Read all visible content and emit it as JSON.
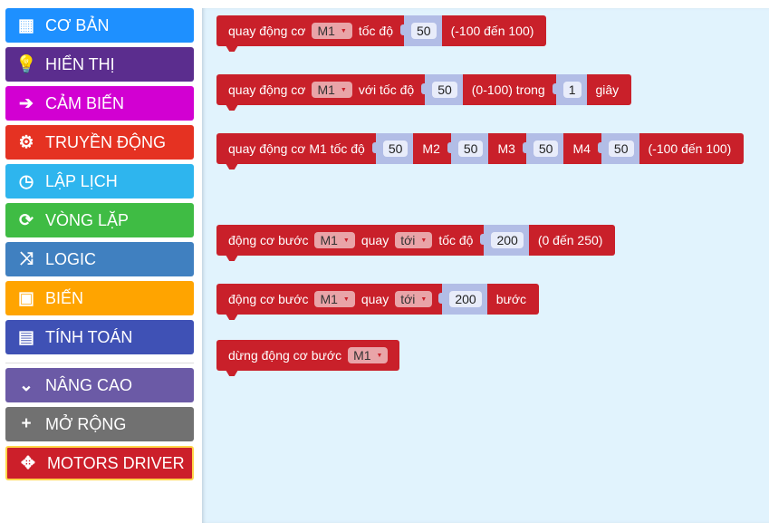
{
  "sidebar": {
    "categories": [
      {
        "label": "CƠ BẢN",
        "icon": "grid-icon",
        "color": "#1e90ff"
      },
      {
        "label": "HIỂN THỊ",
        "icon": "lightbulb-icon",
        "color": "#5b2d8e"
      },
      {
        "label": "CẢM BIẾN",
        "icon": "sign-in-icon",
        "color": "#d200d2"
      },
      {
        "label": "TRUYỀN ĐỘNG",
        "icon": "gears-icon",
        "color": "#e53222"
      },
      {
        "label": "LẬP LỊCH",
        "icon": "clock-icon",
        "color": "#2eb5ee"
      },
      {
        "label": "VÒNG LẶP",
        "icon": "refresh-icon",
        "color": "#3fbc44"
      },
      {
        "label": "LOGIC",
        "icon": "shuffle-icon",
        "color": "#4080c0"
      },
      {
        "label": "BIẾN",
        "icon": "save-icon",
        "color": "#ffa400"
      },
      {
        "label": "TÍNH TOÁN",
        "icon": "calculator-icon",
        "color": "#3f51b5"
      }
    ],
    "extra": [
      {
        "label": "NÂNG CAO",
        "icon": "chevron-down-icon",
        "color": "#6b5aa6"
      },
      {
        "label": "MỞ RỘNG",
        "icon": "plus-icon",
        "color": "#717171"
      },
      {
        "label": "MOTORS DRIVER",
        "icon": "move-icon",
        "color": "#cc1f2a",
        "selected": true
      }
    ]
  },
  "blocks": [
    {
      "parts": [
        {
          "t": "quay động cơ"
        },
        {
          "d": "M1"
        },
        {
          "t": "tốc độ"
        },
        {
          "n": "50"
        },
        {
          "t": "(-100 đến 100)"
        }
      ]
    },
    {
      "parts": [
        {
          "t": "quay động cơ"
        },
        {
          "d": "M1"
        },
        {
          "t": "với tốc độ"
        },
        {
          "n": "50"
        },
        {
          "t": "(0-100) trong"
        },
        {
          "n": "1"
        },
        {
          "t": "giây"
        }
      ]
    },
    {
      "parts": [
        {
          "t": "quay động cơ M1 tốc độ"
        },
        {
          "n": "50"
        },
        {
          "t": "M2"
        },
        {
          "n": "50"
        },
        {
          "t": "M3"
        },
        {
          "n": "50"
        },
        {
          "t": "M4"
        },
        {
          "n": "50"
        },
        {
          "t": "(-100 đến 100)"
        }
      ]
    },
    {
      "parts": [
        {
          "t": "động cơ bước"
        },
        {
          "d": "M1"
        },
        {
          "t": "quay"
        },
        {
          "d": "tới"
        },
        {
          "t": "tốc độ"
        },
        {
          "n": "200"
        },
        {
          "t": "(0 đến 250)"
        }
      ]
    },
    {
      "parts": [
        {
          "t": "động cơ bước"
        },
        {
          "d": "M1"
        },
        {
          "t": "quay"
        },
        {
          "d": "tới"
        },
        {
          "n": "200"
        },
        {
          "t": "bước"
        }
      ]
    },
    {
      "parts": [
        {
          "t": "dừng động cơ bước"
        },
        {
          "d": "M1"
        }
      ]
    }
  ],
  "colors": {
    "block": "#c9202a",
    "workspace": "#e1f3fd",
    "selected_border": "#ffd54a"
  }
}
